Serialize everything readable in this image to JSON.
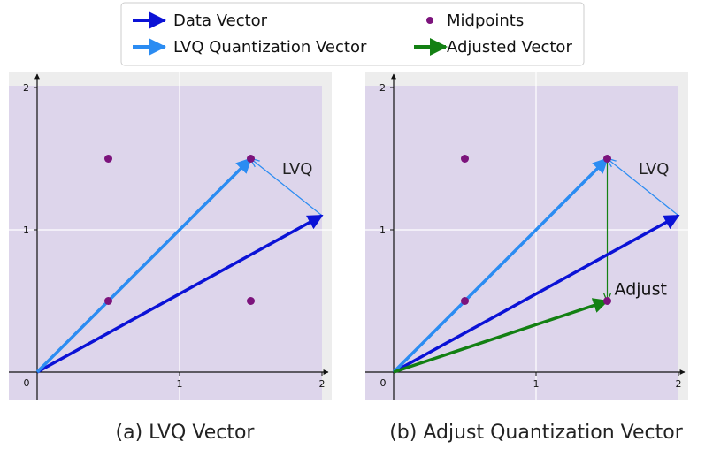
{
  "colors": {
    "data_vector": "#0b12d6",
    "lvq_vector": "#2b8cf2",
    "adjusted_vector": "#138013",
    "midpoint": "#7c137c",
    "plot_bg": "#ddd5eb",
    "outer_bg": "#ededed",
    "grid": "#ffffff"
  },
  "legend": {
    "items": [
      {
        "label": "Data Vector",
        "kind": "arrow",
        "color": "#0b12d6"
      },
      {
        "label": "LVQ Quantization Vector",
        "kind": "arrow",
        "color": "#2b8cf2"
      },
      {
        "label": "Midpoints",
        "kind": "dot",
        "color": "#7c137c"
      },
      {
        "label": "Adjusted Vector",
        "kind": "arrow",
        "color": "#138013"
      }
    ]
  },
  "chart_data": [
    {
      "type": "scatter",
      "title": "",
      "caption": "(a) LVQ Vector",
      "xlim": [
        0,
        2
      ],
      "ylim": [
        0,
        2
      ],
      "xticks": [
        "0",
        "1",
        "2"
      ],
      "yticks": [
        "1",
        "2"
      ],
      "midpoints": [
        [
          0.5,
          0.5
        ],
        [
          0.5,
          1.5
        ],
        [
          1.5,
          1.5
        ],
        [
          1.5,
          0.5
        ]
      ],
      "vectors": [
        {
          "name": "Data Vector",
          "from": [
            0,
            0
          ],
          "to": [
            2,
            1.1
          ],
          "color": "#0b12d6"
        },
        {
          "name": "LVQ Quantization Vector",
          "from": [
            0,
            0
          ],
          "to": [
            1.5,
            1.5
          ],
          "color": "#2b8cf2"
        }
      ],
      "connectors": [
        {
          "from": [
            2,
            1.1
          ],
          "to": [
            1.5,
            1.5
          ],
          "color": "#2b8cf2"
        }
      ],
      "annotations": [
        {
          "text": "LVQ",
          "at": [
            1.72,
            1.43
          ],
          "bold": false
        }
      ]
    },
    {
      "type": "scatter",
      "title": "",
      "caption": "(b) Adjust Quantization Vector",
      "xlim": [
        0,
        2
      ],
      "ylim": [
        0,
        2
      ],
      "xticks": [
        "0",
        "1",
        "2"
      ],
      "yticks": [
        "1",
        "2"
      ],
      "midpoints": [
        [
          0.5,
          0.5
        ],
        [
          0.5,
          1.5
        ],
        [
          1.5,
          1.5
        ],
        [
          1.5,
          0.5
        ]
      ],
      "vectors": [
        {
          "name": "Data Vector",
          "from": [
            0,
            0
          ],
          "to": [
            2,
            1.1
          ],
          "color": "#0b12d6"
        },
        {
          "name": "LVQ Quantization Vector",
          "from": [
            0,
            0
          ],
          "to": [
            1.5,
            1.5
          ],
          "color": "#2b8cf2"
        },
        {
          "name": "Adjusted Vector",
          "from": [
            0,
            0
          ],
          "to": [
            1.5,
            0.5
          ],
          "color": "#138013"
        }
      ],
      "connectors": [
        {
          "from": [
            2,
            1.1
          ],
          "to": [
            1.5,
            1.5
          ],
          "color": "#2b8cf2"
        },
        {
          "from": [
            1.5,
            1.5
          ],
          "to": [
            1.5,
            0.5
          ],
          "color": "#138013"
        }
      ],
      "annotations": [
        {
          "text": "LVQ",
          "at": [
            1.72,
            1.43
          ],
          "bold": false
        },
        {
          "text": "Adjust",
          "at": [
            1.55,
            0.58
          ],
          "bold": true
        }
      ]
    }
  ]
}
